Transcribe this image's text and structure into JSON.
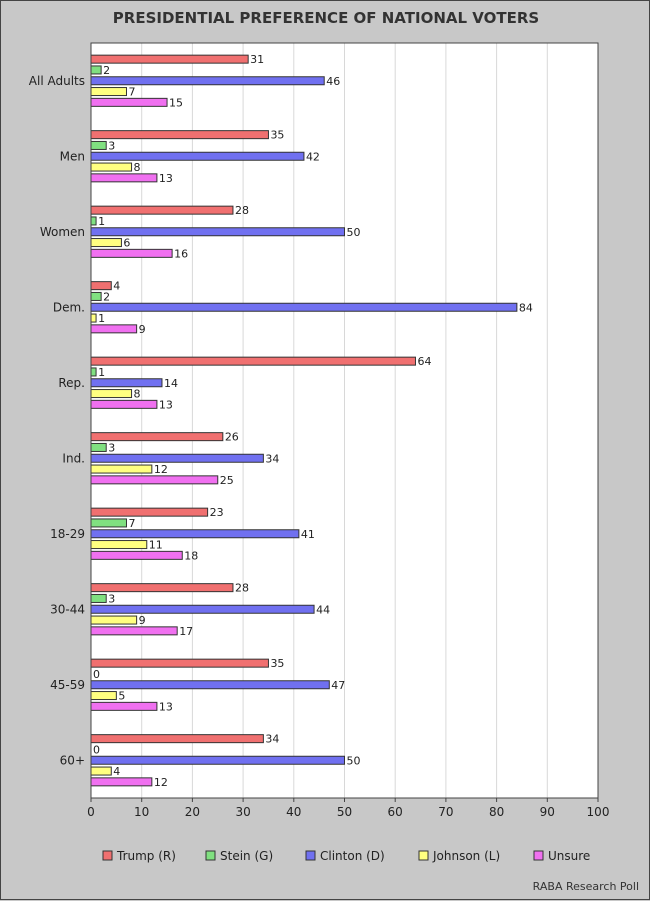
{
  "chart_data": {
    "type": "bar",
    "orientation": "horizontal",
    "title": "PRESIDENTIAL PREFERENCE OF NATIONAL VOTERS",
    "categories": [
      "All Adults",
      "Men",
      "Women",
      "Dem.",
      "Rep.",
      "Ind.",
      "18-29",
      "30-44",
      "45-59",
      "60+"
    ],
    "series": [
      {
        "name": "Trump (R)",
        "color": "#f07070",
        "values": [
          31,
          35,
          28,
          4,
          64,
          26,
          23,
          28,
          35,
          34
        ]
      },
      {
        "name": "Stein (G)",
        "color": "#80e080",
        "values": [
          2,
          3,
          1,
          2,
          1,
          3,
          7,
          3,
          0,
          0
        ]
      },
      {
        "name": "Clinton (D)",
        "color": "#7070f0",
        "values": [
          46,
          42,
          50,
          84,
          14,
          34,
          41,
          44,
          47,
          50
        ]
      },
      {
        "name": "Johnson (L)",
        "color": "#ffff80",
        "values": [
          7,
          8,
          6,
          1,
          8,
          12,
          11,
          9,
          5,
          4
        ]
      },
      {
        "name": "Unsure",
        "color": "#f070f0",
        "values": [
          15,
          13,
          16,
          9,
          13,
          25,
          18,
          17,
          13,
          12
        ]
      }
    ],
    "xlim": [
      0,
      100
    ],
    "xticks": [
      0,
      10,
      20,
      30,
      40,
      50,
      60,
      70,
      80,
      90,
      100
    ],
    "grid": true,
    "legend": "bottom"
  },
  "source": "RABA Research Poll"
}
